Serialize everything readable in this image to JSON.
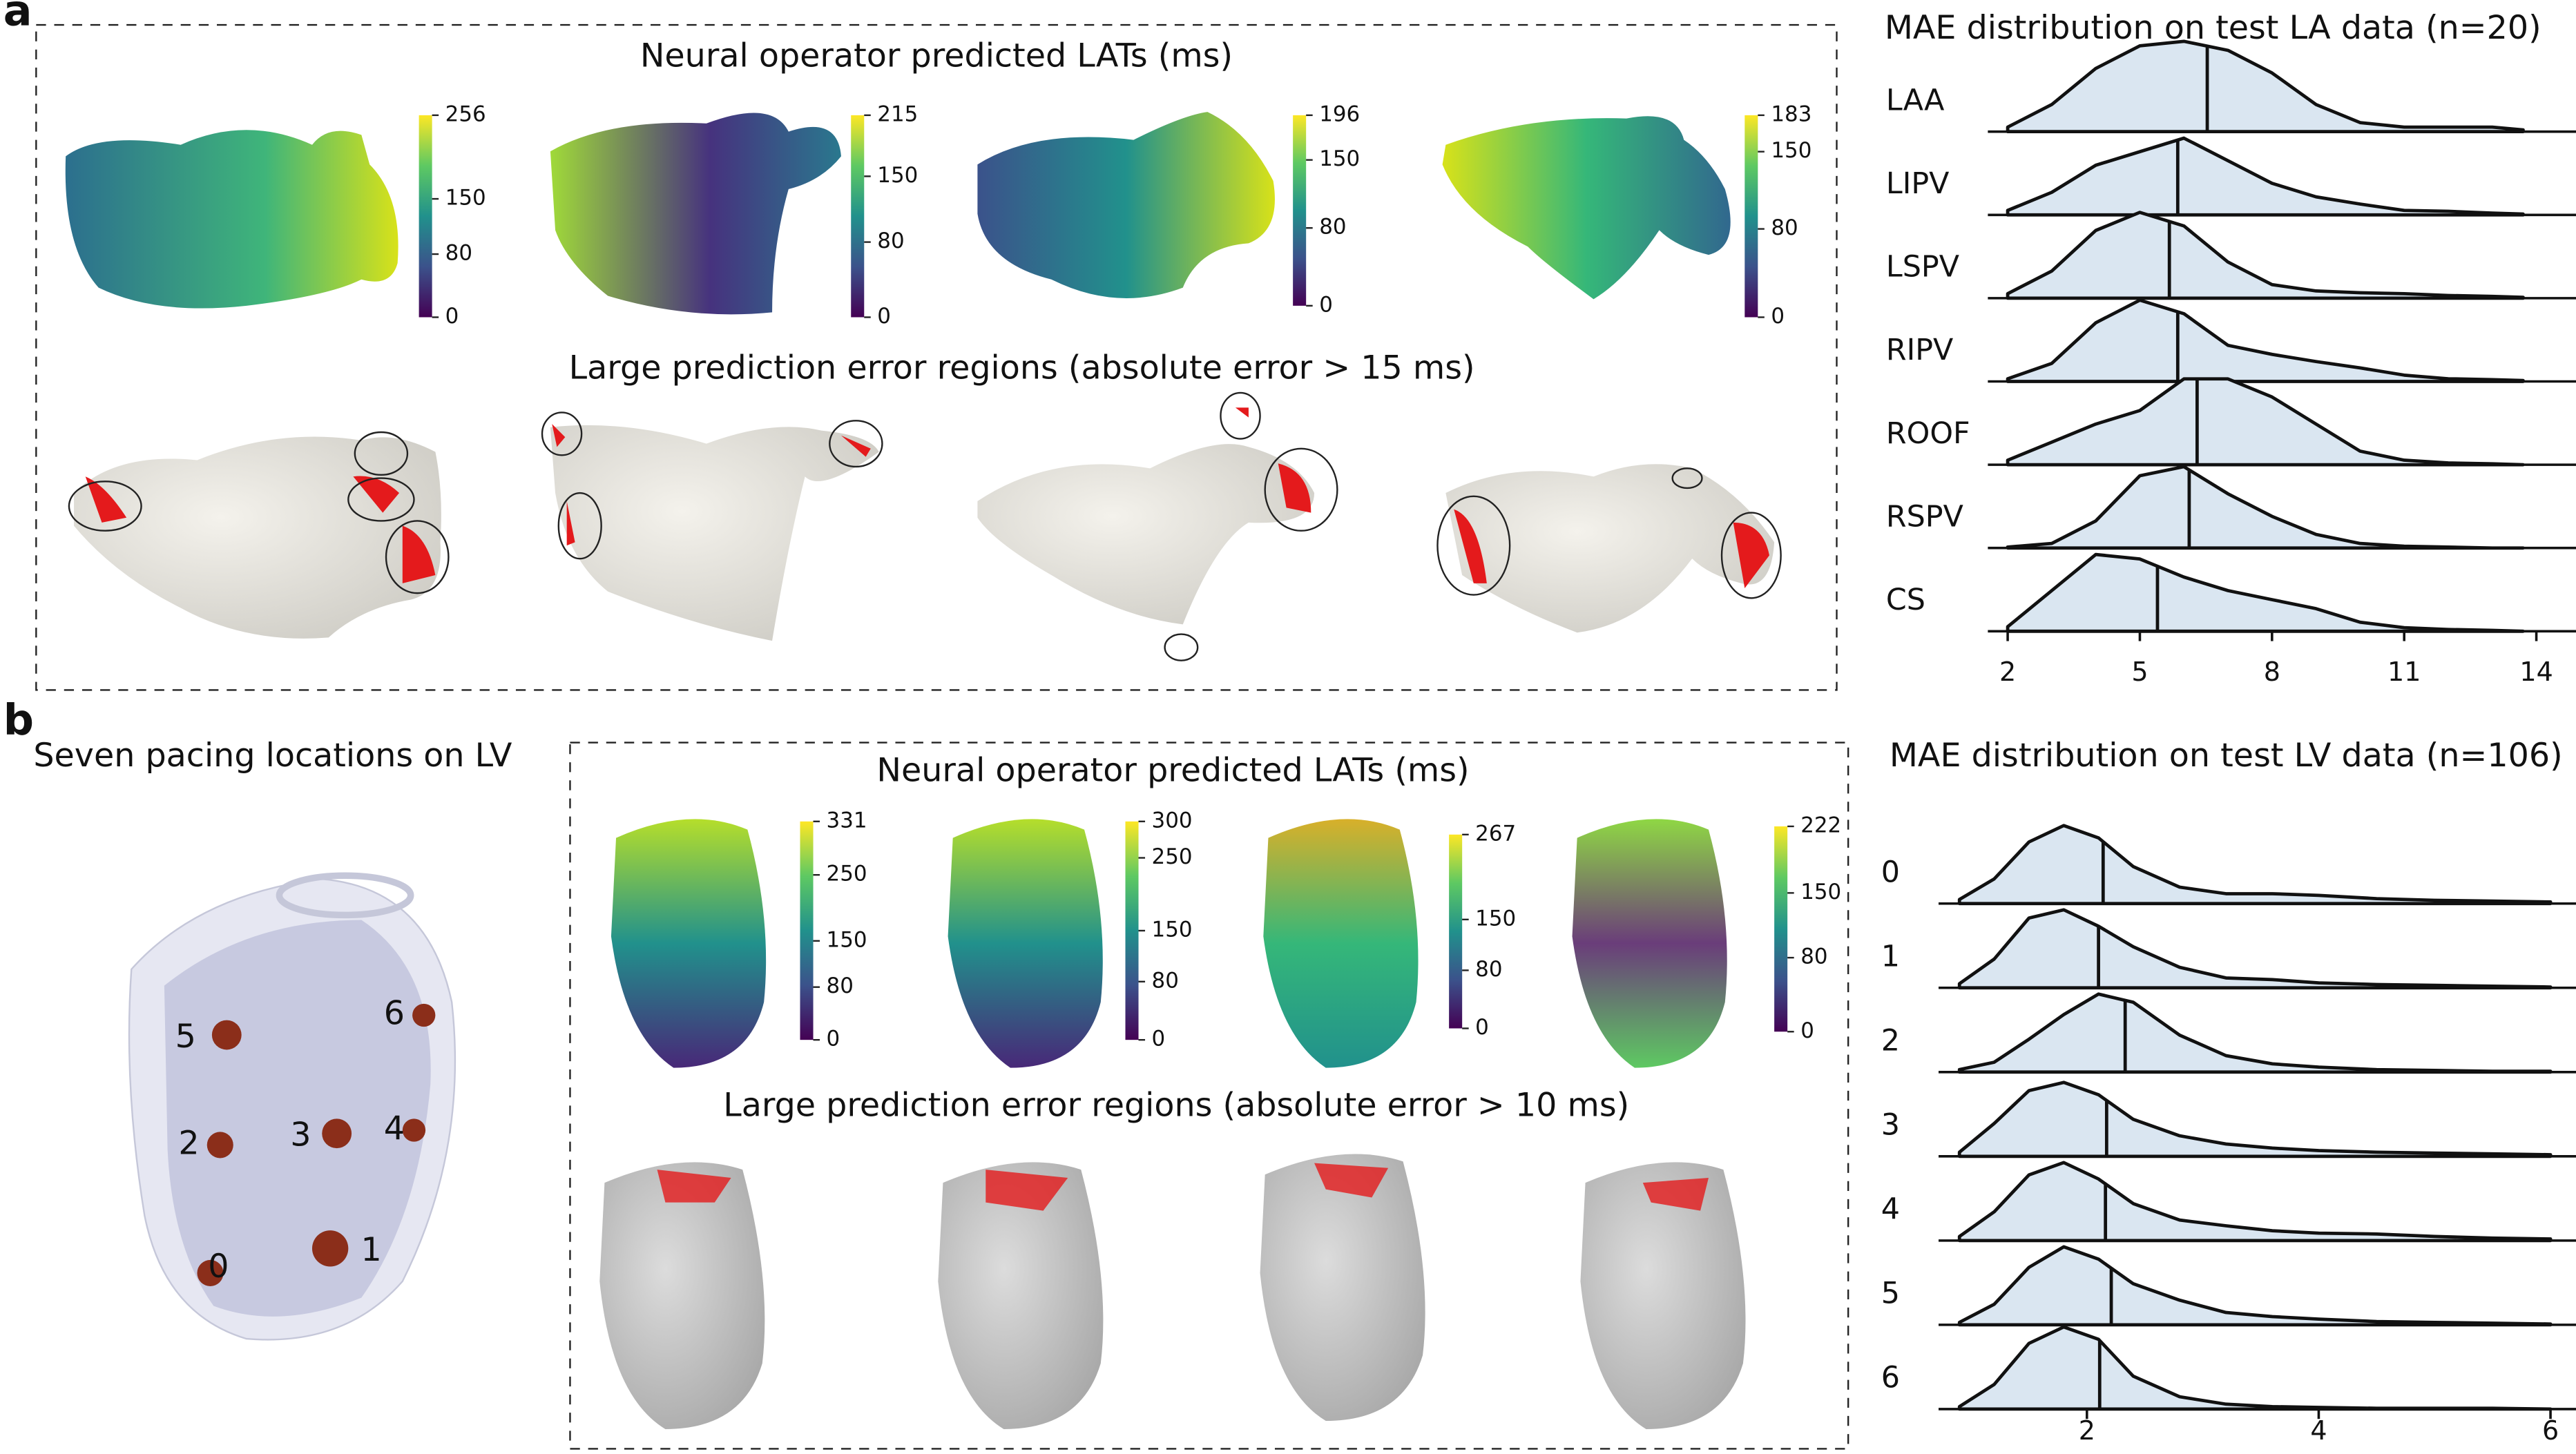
{
  "panel_a": {
    "letter": "a",
    "title_top": "Neural operator predicted LATs (ms)",
    "title_bottom": "Large prediction error regions (absolute error > 15 ms)",
    "colorbars": [
      {
        "lim": [
          0,
          256
        ],
        "ticks": [
          0,
          80,
          150,
          256
        ]
      },
      {
        "lim": [
          0,
          215
        ],
        "ticks": [
          0,
          80,
          150,
          215
        ]
      },
      {
        "lim": [
          0,
          196
        ],
        "ticks": [
          0,
          80,
          150,
          196
        ]
      },
      {
        "lim": [
          0,
          183
        ],
        "ticks": [
          0,
          80,
          150,
          183
        ]
      }
    ]
  },
  "panel_b": {
    "letter": "b",
    "pacing_title": "Seven pacing locations on LV",
    "pacing_labels": [
      "0",
      "1",
      "2",
      "3",
      "4",
      "5",
      "6"
    ],
    "title_top": "Neural operator predicted LATs (ms)",
    "title_bottom": "Large prediction error regions (absolute error > 10 ms)",
    "colorbars": [
      {
        "lim": [
          0,
          331
        ],
        "ticks": [
          0,
          80,
          150,
          250,
          331
        ]
      },
      {
        "lim": [
          0,
          300
        ],
        "ticks": [
          0,
          80,
          150,
          250,
          300
        ]
      },
      {
        "lim": [
          0,
          267
        ],
        "ticks": [
          0,
          80,
          150,
          267
        ]
      },
      {
        "lim": [
          0,
          222
        ],
        "ticks": [
          0,
          80,
          150,
          222
        ]
      }
    ]
  },
  "chart_data": [
    {
      "type": "ridgeline",
      "title": "MAE distribution on test LA data (n=20)",
      "x": [
        2,
        3,
        4,
        5,
        6,
        7,
        8,
        9,
        10,
        11,
        12,
        13,
        13.7
      ],
      "series": [
        {
          "name": "LAA",
          "color": "#dae6f1",
          "values": [
            0.05,
            0.3,
            0.7,
            0.95,
            1.0,
            0.9,
            0.65,
            0.3,
            0.1,
            0.05,
            0.05,
            0.05,
            0.02
          ],
          "mean": 6.53
        },
        {
          "name": "LIPV",
          "color": "#dae6f1",
          "values": [
            0.05,
            0.25,
            0.55,
            0.7,
            0.85,
            0.6,
            0.35,
            0.2,
            0.12,
            0.05,
            0.04,
            0.02,
            0.01
          ],
          "mean": 5.86
        },
        {
          "name": "LSPV",
          "color": "#dae6f1",
          "values": [
            0.05,
            0.3,
            0.75,
            0.95,
            0.8,
            0.4,
            0.15,
            0.08,
            0.06,
            0.05,
            0.03,
            0.02,
            0.01
          ],
          "mean": 5.67
        },
        {
          "name": "RIPV",
          "color": "#dae6f1",
          "values": [
            0.03,
            0.2,
            0.65,
            0.9,
            0.75,
            0.4,
            0.3,
            0.22,
            0.15,
            0.07,
            0.03,
            0.02,
            0.01
          ],
          "mean": 5.86
        },
        {
          "name": "ROOF",
          "color": "#dae6f1",
          "values": [
            0.05,
            0.25,
            0.45,
            0.6,
            0.95,
            0.95,
            0.75,
            0.45,
            0.15,
            0.05,
            0.02,
            0.01,
            0
          ],
          "mean": 6.3
        },
        {
          "name": "RSPV",
          "color": "#dae6f1",
          "values": [
            0.01,
            0.05,
            0.3,
            0.8,
            0.9,
            0.6,
            0.35,
            0.15,
            0.05,
            0.02,
            0.01,
            0,
            0
          ],
          "mean": 6.12
        },
        {
          "name": "CS",
          "color": "#dae6f1",
          "values": [
            0.05,
            0.45,
            0.85,
            0.8,
            0.6,
            0.45,
            0.35,
            0.25,
            0.1,
            0.04,
            0.02,
            0.01,
            0
          ],
          "mean": 5.4
        }
      ],
      "xlim": [
        1.55,
        14.9
      ],
      "xticks": [
        2,
        5,
        8,
        11,
        14
      ]
    },
    {
      "type": "ridgeline",
      "title": "MAE distribution on test LV data (n=106)",
      "x": [
        0.9,
        1.2,
        1.5,
        1.8,
        2.1,
        2.4,
        2.8,
        3.2,
        3.6,
        4,
        4.5,
        5,
        5.5,
        6
      ],
      "series": [
        {
          "name": "0",
          "color": "#dae6f1",
          "values": [
            0.05,
            0.3,
            0.75,
            0.95,
            0.8,
            0.45,
            0.2,
            0.12,
            0.12,
            0.1,
            0.06,
            0.04,
            0.03,
            0.02
          ],
          "mean": 2.14
        },
        {
          "name": "1",
          "color": "#dae6f1",
          "values": [
            0.05,
            0.35,
            0.85,
            0.95,
            0.75,
            0.5,
            0.25,
            0.12,
            0.1,
            0.06,
            0.04,
            0.03,
            0.02,
            0.01
          ],
          "mean": 2.1
        },
        {
          "name": "2",
          "color": "#dae6f1",
          "values": [
            0.03,
            0.12,
            0.4,
            0.7,
            0.95,
            0.85,
            0.45,
            0.2,
            0.1,
            0.06,
            0.03,
            0.02,
            0.01,
            0.01
          ],
          "mean": 2.33
        },
        {
          "name": "3",
          "color": "#dae6f1",
          "values": [
            0.05,
            0.4,
            0.8,
            0.9,
            0.75,
            0.45,
            0.25,
            0.15,
            0.1,
            0.07,
            0.05,
            0.04,
            0.03,
            0.02
          ],
          "mean": 2.17
        },
        {
          "name": "4",
          "color": "#dae6f1",
          "values": [
            0.05,
            0.35,
            0.8,
            0.95,
            0.75,
            0.45,
            0.25,
            0.18,
            0.12,
            0.09,
            0.08,
            0.05,
            0.03,
            0.02
          ],
          "mean": 2.16
        },
        {
          "name": "5",
          "color": "#dae6f1",
          "values": [
            0.03,
            0.25,
            0.7,
            0.95,
            0.8,
            0.5,
            0.3,
            0.15,
            0.1,
            0.07,
            0.04,
            0.03,
            0.02,
            0.01
          ],
          "mean": 2.21
        },
        {
          "name": "6",
          "color": "#dae6f1",
          "values": [
            0.03,
            0.3,
            0.8,
            1.0,
            0.85,
            0.4,
            0.15,
            0.06,
            0.03,
            0.02,
            0.01,
            0.01,
            0.01,
            0
          ],
          "mean": 2.11
        }
      ],
      "xlim": [
        0.72,
        6.22
      ],
      "xticks": [
        2,
        4,
        6
      ]
    }
  ]
}
